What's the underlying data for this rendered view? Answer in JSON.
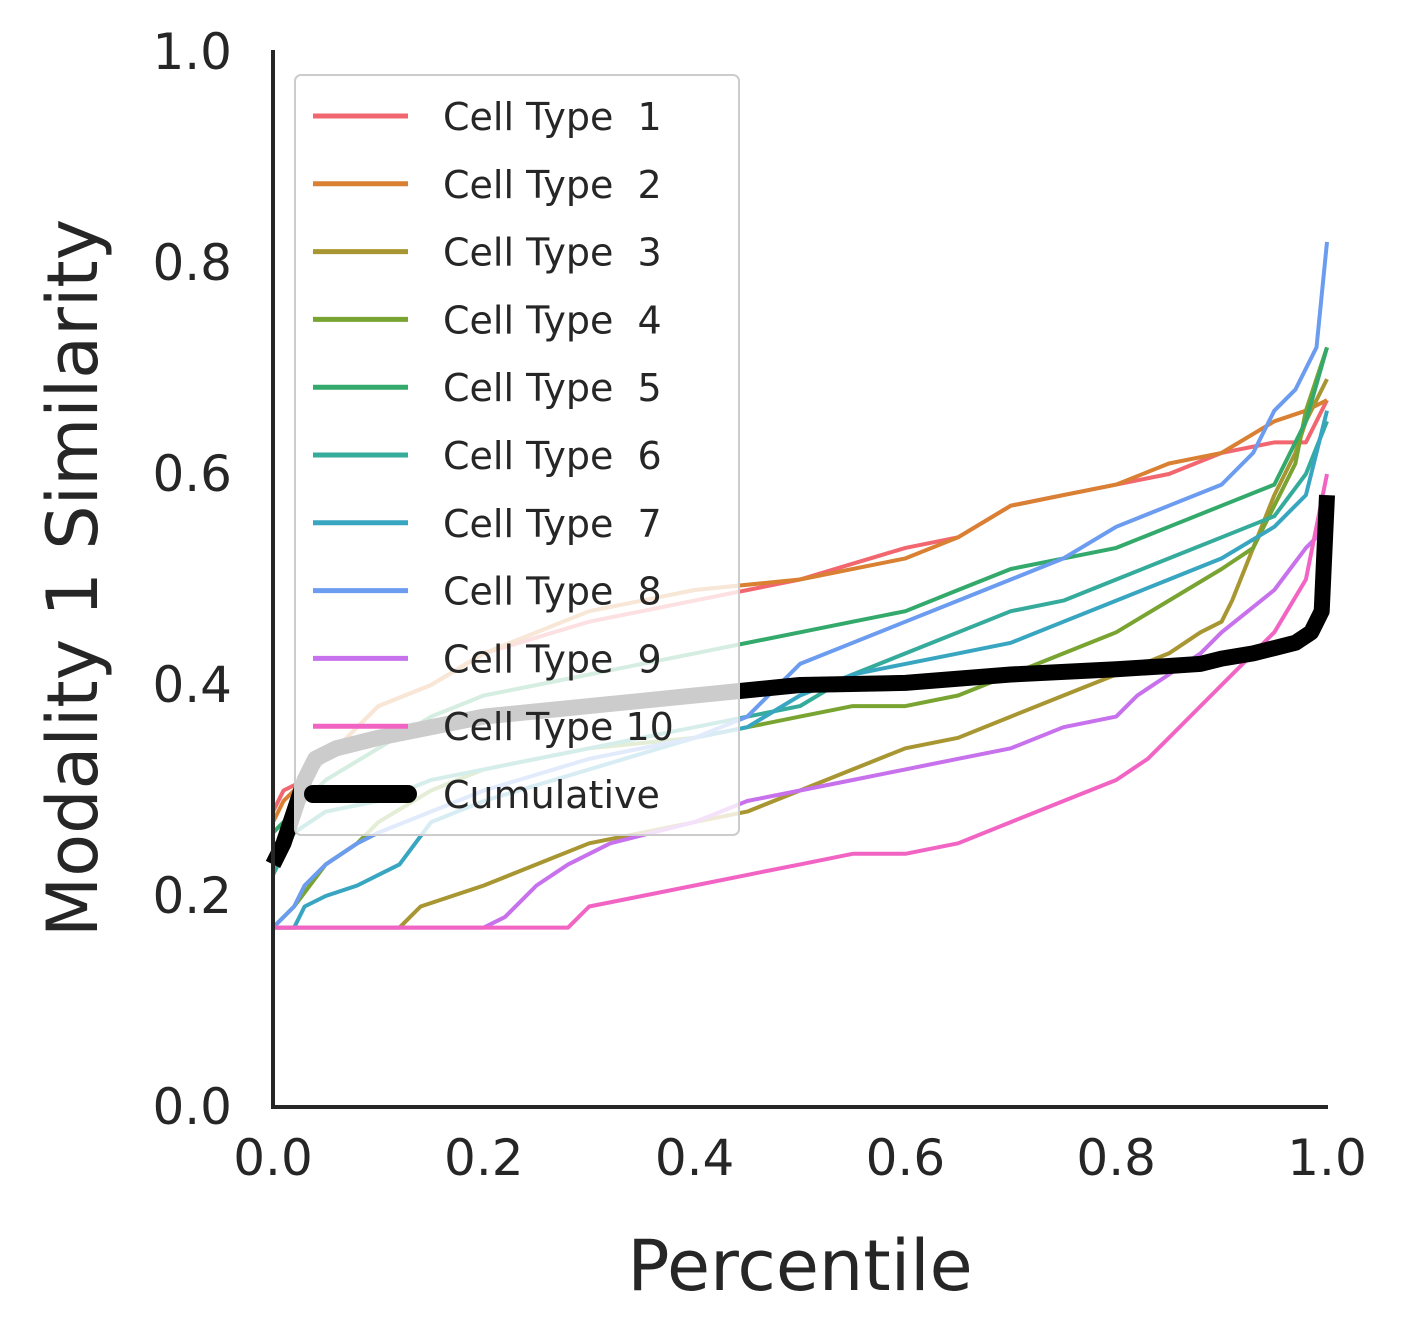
{
  "chart_data": {
    "type": "line",
    "xlabel": "Percentile",
    "ylabel": "Modality 1 Similarity",
    "xlim": [
      0,
      1
    ],
    "ylim": [
      0,
      1
    ],
    "xticks": [
      "0.0",
      "0.2",
      "0.4",
      "0.6",
      "0.8",
      "1.0"
    ],
    "yticks": [
      "0.0",
      "0.2",
      "0.4",
      "0.6",
      "0.8",
      "1.0"
    ],
    "grid": false,
    "legend_position": "upper-left",
    "series": [
      {
        "name": "Cell Type  1",
        "color": "#f2676f",
        "width": 4,
        "points": [
          [
            0,
            0.28
          ],
          [
            0.01,
            0.3
          ],
          [
            0.03,
            0.31
          ],
          [
            0.05,
            0.33
          ],
          [
            0.08,
            0.36
          ],
          [
            0.1,
            0.38
          ],
          [
            0.15,
            0.4
          ],
          [
            0.2,
            0.43
          ],
          [
            0.3,
            0.46
          ],
          [
            0.4,
            0.48
          ],
          [
            0.5,
            0.5
          ],
          [
            0.6,
            0.53
          ],
          [
            0.65,
            0.54
          ],
          [
            0.7,
            0.57
          ],
          [
            0.75,
            0.58
          ],
          [
            0.8,
            0.59
          ],
          [
            0.85,
            0.6
          ],
          [
            0.9,
            0.62
          ],
          [
            0.95,
            0.63
          ],
          [
            0.98,
            0.63
          ],
          [
            1.0,
            0.67
          ]
        ]
      },
      {
        "name": "Cell Type  2",
        "color": "#d98033",
        "width": 4,
        "points": [
          [
            0,
            0.27
          ],
          [
            0.01,
            0.29
          ],
          [
            0.03,
            0.31
          ],
          [
            0.05,
            0.33
          ],
          [
            0.08,
            0.36
          ],
          [
            0.1,
            0.38
          ],
          [
            0.15,
            0.4
          ],
          [
            0.2,
            0.43
          ],
          [
            0.3,
            0.47
          ],
          [
            0.4,
            0.49
          ],
          [
            0.5,
            0.5
          ],
          [
            0.6,
            0.52
          ],
          [
            0.65,
            0.54
          ],
          [
            0.7,
            0.57
          ],
          [
            0.75,
            0.58
          ],
          [
            0.8,
            0.59
          ],
          [
            0.85,
            0.61
          ],
          [
            0.9,
            0.62
          ],
          [
            0.95,
            0.65
          ],
          [
            0.98,
            0.66
          ],
          [
            1.0,
            0.67
          ]
        ]
      },
      {
        "name": "Cell Type  3",
        "color": "#a89632",
        "width": 4,
        "points": [
          [
            0,
            0.17
          ],
          [
            0.12,
            0.17
          ],
          [
            0.14,
            0.19
          ],
          [
            0.2,
            0.21
          ],
          [
            0.25,
            0.23
          ],
          [
            0.3,
            0.25
          ],
          [
            0.35,
            0.26
          ],
          [
            0.4,
            0.27
          ],
          [
            0.45,
            0.28
          ],
          [
            0.5,
            0.3
          ],
          [
            0.55,
            0.32
          ],
          [
            0.6,
            0.34
          ],
          [
            0.65,
            0.35
          ],
          [
            0.7,
            0.37
          ],
          [
            0.75,
            0.39
          ],
          [
            0.8,
            0.41
          ],
          [
            0.85,
            0.43
          ],
          [
            0.88,
            0.45
          ],
          [
            0.9,
            0.46
          ],
          [
            0.91,
            0.48
          ],
          [
            0.93,
            0.53
          ],
          [
            0.95,
            0.58
          ],
          [
            0.97,
            0.62
          ],
          [
            0.98,
            0.65
          ],
          [
            1.0,
            0.69
          ]
        ]
      },
      {
        "name": "Cell Type  4",
        "color": "#79a432",
        "width": 4,
        "points": [
          [
            0,
            0.17
          ],
          [
            0.02,
            0.19
          ],
          [
            0.05,
            0.23
          ],
          [
            0.08,
            0.25
          ],
          [
            0.1,
            0.27
          ],
          [
            0.15,
            0.3
          ],
          [
            0.2,
            0.32
          ],
          [
            0.3,
            0.34
          ],
          [
            0.4,
            0.35
          ],
          [
            0.45,
            0.36
          ],
          [
            0.5,
            0.37
          ],
          [
            0.55,
            0.38
          ],
          [
            0.6,
            0.38
          ],
          [
            0.65,
            0.39
          ],
          [
            0.7,
            0.41
          ],
          [
            0.75,
            0.43
          ],
          [
            0.8,
            0.45
          ],
          [
            0.85,
            0.48
          ],
          [
            0.9,
            0.51
          ],
          [
            0.93,
            0.53
          ],
          [
            0.95,
            0.57
          ],
          [
            0.97,
            0.61
          ],
          [
            0.98,
            0.66
          ],
          [
            1.0,
            0.72
          ]
        ]
      },
      {
        "name": "Cell Type  5",
        "color": "#34a96c",
        "width": 4,
        "points": [
          [
            0,
            0.26
          ],
          [
            0.02,
            0.28
          ],
          [
            0.05,
            0.31
          ],
          [
            0.1,
            0.34
          ],
          [
            0.15,
            0.37
          ],
          [
            0.2,
            0.39
          ],
          [
            0.3,
            0.41
          ],
          [
            0.4,
            0.43
          ],
          [
            0.5,
            0.45
          ],
          [
            0.55,
            0.46
          ],
          [
            0.6,
            0.47
          ],
          [
            0.65,
            0.49
          ],
          [
            0.7,
            0.51
          ],
          [
            0.75,
            0.52
          ],
          [
            0.8,
            0.53
          ],
          [
            0.85,
            0.55
          ],
          [
            0.9,
            0.57
          ],
          [
            0.95,
            0.59
          ],
          [
            0.98,
            0.65
          ],
          [
            1.0,
            0.72
          ]
        ]
      },
      {
        "name": "Cell Type  6",
        "color": "#35ab9c",
        "width": 4,
        "points": [
          [
            0,
            0.22
          ],
          [
            0.02,
            0.26
          ],
          [
            0.05,
            0.28
          ],
          [
            0.1,
            0.29
          ],
          [
            0.15,
            0.31
          ],
          [
            0.2,
            0.32
          ],
          [
            0.3,
            0.34
          ],
          [
            0.4,
            0.36
          ],
          [
            0.5,
            0.38
          ],
          [
            0.55,
            0.41
          ],
          [
            0.6,
            0.43
          ],
          [
            0.65,
            0.45
          ],
          [
            0.7,
            0.47
          ],
          [
            0.75,
            0.48
          ],
          [
            0.8,
            0.5
          ],
          [
            0.85,
            0.52
          ],
          [
            0.9,
            0.54
          ],
          [
            0.95,
            0.56
          ],
          [
            0.98,
            0.6
          ],
          [
            1.0,
            0.65
          ]
        ]
      },
      {
        "name": "Cell Type  7",
        "color": "#38a6c0",
        "width": 4,
        "points": [
          [
            0,
            0.17
          ],
          [
            0.02,
            0.17
          ],
          [
            0.03,
            0.19
          ],
          [
            0.05,
            0.2
          ],
          [
            0.08,
            0.21
          ],
          [
            0.12,
            0.23
          ],
          [
            0.15,
            0.27
          ],
          [
            0.2,
            0.29
          ],
          [
            0.3,
            0.32
          ],
          [
            0.4,
            0.35
          ],
          [
            0.45,
            0.36
          ],
          [
            0.5,
            0.39
          ],
          [
            0.55,
            0.41
          ],
          [
            0.6,
            0.42
          ],
          [
            0.65,
            0.43
          ],
          [
            0.7,
            0.44
          ],
          [
            0.75,
            0.46
          ],
          [
            0.8,
            0.48
          ],
          [
            0.85,
            0.5
          ],
          [
            0.9,
            0.52
          ],
          [
            0.95,
            0.55
          ],
          [
            0.98,
            0.58
          ],
          [
            1.0,
            0.66
          ]
        ]
      },
      {
        "name": "Cell Type  8",
        "color": "#6b9cef",
        "width": 4,
        "points": [
          [
            0,
            0.17
          ],
          [
            0.02,
            0.19
          ],
          [
            0.03,
            0.21
          ],
          [
            0.05,
            0.23
          ],
          [
            0.08,
            0.25
          ],
          [
            0.1,
            0.26
          ],
          [
            0.15,
            0.28
          ],
          [
            0.2,
            0.3
          ],
          [
            0.3,
            0.33
          ],
          [
            0.4,
            0.35
          ],
          [
            0.45,
            0.37
          ],
          [
            0.48,
            0.4
          ],
          [
            0.5,
            0.42
          ],
          [
            0.55,
            0.44
          ],
          [
            0.6,
            0.46
          ],
          [
            0.65,
            0.48
          ],
          [
            0.7,
            0.5
          ],
          [
            0.75,
            0.52
          ],
          [
            0.8,
            0.55
          ],
          [
            0.85,
            0.57
          ],
          [
            0.9,
            0.59
          ],
          [
            0.93,
            0.62
          ],
          [
            0.95,
            0.66
          ],
          [
            0.97,
            0.68
          ],
          [
            0.99,
            0.72
          ],
          [
            1.0,
            0.82
          ]
        ]
      },
      {
        "name": "Cell Type  9",
        "color": "#c771ec",
        "width": 4,
        "points": [
          [
            0,
            0.17
          ],
          [
            0.18,
            0.17
          ],
          [
            0.2,
            0.17
          ],
          [
            0.22,
            0.18
          ],
          [
            0.25,
            0.21
          ],
          [
            0.28,
            0.23
          ],
          [
            0.32,
            0.25
          ],
          [
            0.4,
            0.27
          ],
          [
            0.45,
            0.29
          ],
          [
            0.5,
            0.3
          ],
          [
            0.55,
            0.31
          ],
          [
            0.6,
            0.32
          ],
          [
            0.65,
            0.33
          ],
          [
            0.7,
            0.34
          ],
          [
            0.75,
            0.36
          ],
          [
            0.8,
            0.37
          ],
          [
            0.82,
            0.39
          ],
          [
            0.85,
            0.41
          ],
          [
            0.88,
            0.43
          ],
          [
            0.9,
            0.45
          ],
          [
            0.95,
            0.49
          ],
          [
            0.98,
            0.53
          ],
          [
            1.0,
            0.55
          ]
        ]
      },
      {
        "name": "Cell Type 10",
        "color": "#f264c4",
        "width": 4,
        "points": [
          [
            0,
            0.17
          ],
          [
            0.28,
            0.17
          ],
          [
            0.3,
            0.19
          ],
          [
            0.35,
            0.2
          ],
          [
            0.4,
            0.21
          ],
          [
            0.45,
            0.22
          ],
          [
            0.5,
            0.23
          ],
          [
            0.55,
            0.24
          ],
          [
            0.6,
            0.24
          ],
          [
            0.65,
            0.25
          ],
          [
            0.7,
            0.27
          ],
          [
            0.75,
            0.29
          ],
          [
            0.8,
            0.31
          ],
          [
            0.83,
            0.33
          ],
          [
            0.85,
            0.35
          ],
          [
            0.88,
            0.38
          ],
          [
            0.9,
            0.4
          ],
          [
            0.92,
            0.42
          ],
          [
            0.95,
            0.45
          ],
          [
            0.98,
            0.5
          ],
          [
            1.0,
            0.6
          ]
        ]
      },
      {
        "name": "Cumulative",
        "color": "#000000",
        "width": 16,
        "points": [
          [
            0,
            0.23
          ],
          [
            0.01,
            0.25
          ],
          [
            0.02,
            0.28
          ],
          [
            0.03,
            0.31
          ],
          [
            0.04,
            0.33
          ],
          [
            0.06,
            0.34
          ],
          [
            0.1,
            0.35
          ],
          [
            0.15,
            0.36
          ],
          [
            0.2,
            0.37
          ],
          [
            0.3,
            0.38
          ],
          [
            0.4,
            0.39
          ],
          [
            0.5,
            0.4
          ],
          [
            0.6,
            0.402
          ],
          [
            0.7,
            0.41
          ],
          [
            0.8,
            0.415
          ],
          [
            0.85,
            0.418
          ],
          [
            0.88,
            0.42
          ],
          [
            0.9,
            0.425
          ],
          [
            0.93,
            0.43
          ],
          [
            0.95,
            0.435
          ],
          [
            0.97,
            0.44
          ],
          [
            0.985,
            0.45
          ],
          [
            0.995,
            0.47
          ],
          [
            1.0,
            0.58
          ]
        ]
      }
    ]
  }
}
